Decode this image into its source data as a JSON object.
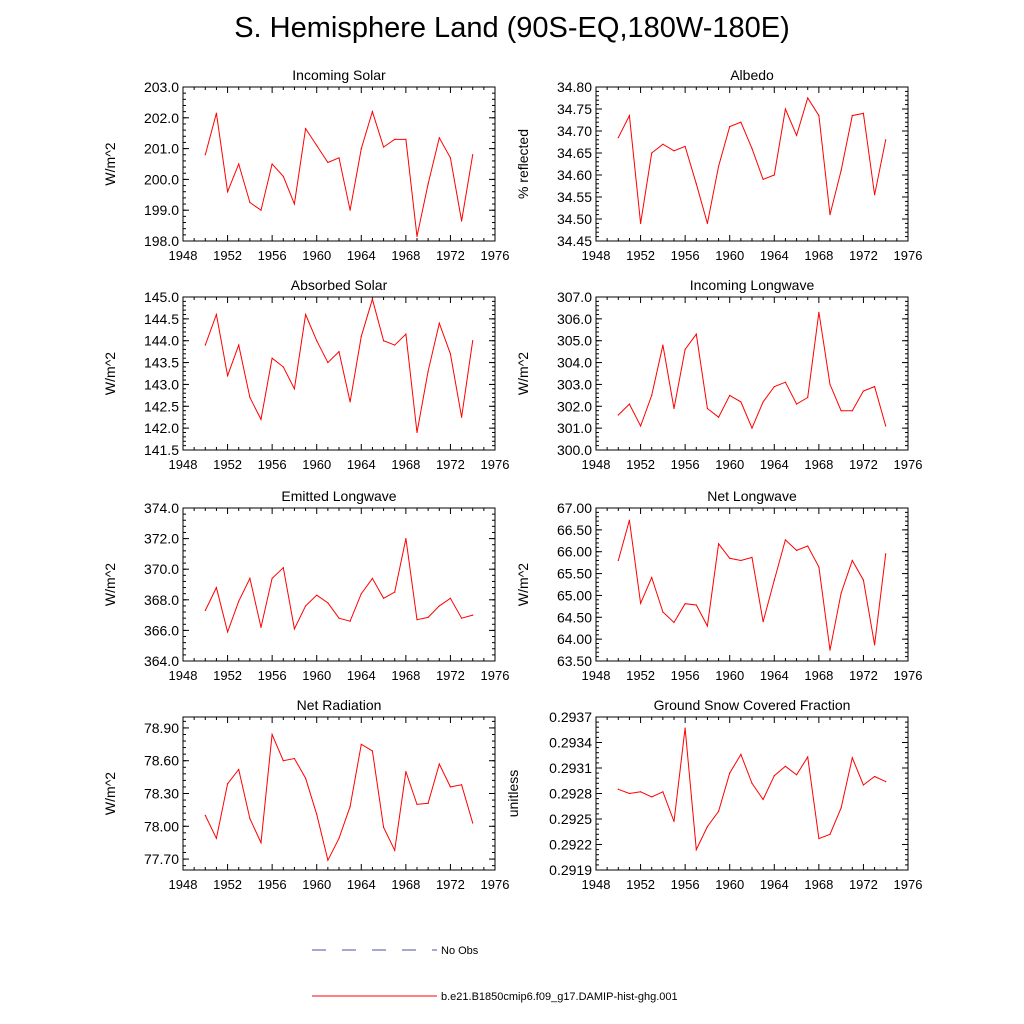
{
  "title": "S. Hemisphere Land (90S-EQ,180W-180E)",
  "colors": {
    "series": "#ff0000",
    "obs": "#4f4fa8",
    "axis": "#000000"
  },
  "legend": {
    "entries": [
      {
        "label": "No Obs",
        "style": "dashed",
        "color": "#4f4fa8"
      },
      {
        "label": "b.e21.B1850cmip6.f09_g17.DAMIP-hist-ghg.001",
        "style": "solid",
        "color": "#ff0000"
      }
    ]
  },
  "chart_data": [
    {
      "type": "line",
      "title": "Incoming Solar",
      "ylabel": "W/m^2",
      "xlim": [
        1948,
        1976
      ],
      "ylim": [
        198.0,
        203.0
      ],
      "xticks": [
        "1948",
        "1952",
        "1956",
        "1960",
        "1964",
        "1968",
        "1972",
        "1976"
      ],
      "yticks": [
        "198.0",
        "199.0",
        "200.0",
        "201.0",
        "202.0",
        "203.0"
      ],
      "x": [
        1950,
        1951,
        1952,
        1953,
        1954,
        1955,
        1956,
        1957,
        1958,
        1959,
        1960,
        1961,
        1962,
        1963,
        1964,
        1965,
        1966,
        1967,
        1968,
        1969,
        1970,
        1971,
        1972,
        1973,
        1974
      ],
      "series": [
        {
          "values": [
            200.8,
            202.15,
            199.6,
            200.5,
            199.25,
            199.0,
            200.5,
            200.1,
            199.2,
            201.65,
            201.1,
            200.55,
            200.7,
            199.0,
            201.0,
            202.2,
            201.05,
            201.3,
            201.3,
            198.15,
            199.85,
            201.35,
            200.7,
            198.65,
            200.8
          ]
        }
      ]
    },
    {
      "type": "line",
      "title": "Albedo",
      "ylabel": "% reflected",
      "xlim": [
        1948,
        1976
      ],
      "ylim": [
        34.45,
        34.8
      ],
      "xticks": [
        "1948",
        "1952",
        "1956",
        "1960",
        "1964",
        "1968",
        "1972",
        "1976"
      ],
      "yticks": [
        "34.45",
        "34.50",
        "34.55",
        "34.60",
        "34.65",
        "34.70",
        "34.75",
        "34.80"
      ],
      "x": [
        1950,
        1951,
        1952,
        1953,
        1954,
        1955,
        1956,
        1957,
        1958,
        1959,
        1960,
        1961,
        1962,
        1963,
        1964,
        1965,
        1966,
        1967,
        1968,
        1969,
        1970,
        1971,
        1972,
        1973,
        1974
      ],
      "series": [
        {
          "values": [
            34.685,
            34.735,
            34.49,
            34.65,
            34.67,
            34.655,
            34.665,
            34.58,
            34.49,
            34.62,
            34.71,
            34.72,
            34.66,
            34.59,
            34.6,
            34.75,
            34.69,
            34.775,
            34.735,
            34.51,
            34.61,
            34.735,
            34.74,
            34.555,
            34.68
          ]
        }
      ]
    },
    {
      "type": "line",
      "title": "Absorbed Solar",
      "ylabel": "W/m^2",
      "xlim": [
        1948,
        1976
      ],
      "ylim": [
        141.5,
        145.0
      ],
      "xticks": [
        "1948",
        "1952",
        "1956",
        "1960",
        "1964",
        "1968",
        "1972",
        "1976"
      ],
      "yticks": [
        "141.5",
        "142.0",
        "142.5",
        "143.0",
        "143.5",
        "144.0",
        "144.5",
        "145.0"
      ],
      "x": [
        1950,
        1951,
        1952,
        1953,
        1954,
        1955,
        1956,
        1957,
        1958,
        1959,
        1960,
        1961,
        1962,
        1963,
        1964,
        1965,
        1966,
        1967,
        1968,
        1969,
        1970,
        1971,
        1972,
        1973,
        1974
      ],
      "series": [
        {
          "values": [
            143.9,
            144.6,
            143.2,
            143.9,
            142.7,
            142.2,
            143.6,
            143.4,
            142.9,
            144.6,
            144.0,
            143.5,
            143.75,
            142.6,
            144.1,
            144.95,
            144.0,
            143.9,
            144.15,
            141.9,
            143.3,
            144.4,
            143.7,
            142.25,
            144.0
          ]
        }
      ]
    },
    {
      "type": "line",
      "title": "Incoming Longwave",
      "ylabel": "W/m^2",
      "xlim": [
        1948,
        1976
      ],
      "ylim": [
        300.0,
        307.0
      ],
      "xticks": [
        "1948",
        "1952",
        "1956",
        "1960",
        "1964",
        "1968",
        "1972",
        "1976"
      ],
      "yticks": [
        "300.0",
        "301.0",
        "302.0",
        "303.0",
        "304.0",
        "305.0",
        "306.0",
        "307.0"
      ],
      "x": [
        1950,
        1951,
        1952,
        1953,
        1954,
        1955,
        1956,
        1957,
        1958,
        1959,
        1960,
        1961,
        1962,
        1963,
        1964,
        1965,
        1966,
        1967,
        1968,
        1969,
        1970,
        1971,
        1972,
        1973,
        1974
      ],
      "series": [
        {
          "values": [
            301.6,
            302.1,
            301.1,
            302.5,
            304.8,
            301.9,
            304.6,
            305.3,
            301.9,
            301.5,
            302.5,
            302.2,
            301.0,
            302.2,
            302.9,
            303.1,
            302.1,
            302.4,
            306.3,
            303.0,
            301.8,
            301.8,
            302.7,
            302.9,
            301.1
          ]
        }
      ]
    },
    {
      "type": "line",
      "title": "Emitted Longwave",
      "ylabel": "W/m^2",
      "xlim": [
        1948,
        1976
      ],
      "ylim": [
        364.0,
        374.0
      ],
      "xticks": [
        "1948",
        "1952",
        "1956",
        "1960",
        "1964",
        "1968",
        "1972",
        "1976"
      ],
      "yticks": [
        "364.0",
        "366.0",
        "368.0",
        "370.0",
        "372.0",
        "374.0"
      ],
      "x": [
        1950,
        1951,
        1952,
        1953,
        1954,
        1955,
        1956,
        1957,
        1958,
        1959,
        1960,
        1961,
        1962,
        1963,
        1964,
        1965,
        1966,
        1967,
        1968,
        1969,
        1970,
        1971,
        1972,
        1973,
        1974
      ],
      "series": [
        {
          "values": [
            367.3,
            368.8,
            365.9,
            367.9,
            369.4,
            366.2,
            369.4,
            370.1,
            366.1,
            367.6,
            368.3,
            367.8,
            366.8,
            366.6,
            368.4,
            369.4,
            368.1,
            368.5,
            372.0,
            366.7,
            366.85,
            367.6,
            368.1,
            366.8,
            367.0
          ]
        }
      ]
    },
    {
      "type": "line",
      "title": "Net Longwave",
      "ylabel": "W/m^2",
      "xlim": [
        1948,
        1976
      ],
      "ylim": [
        63.5,
        67.0
      ],
      "xticks": [
        "1948",
        "1952",
        "1956",
        "1960",
        "1964",
        "1968",
        "1972",
        "1976"
      ],
      "yticks": [
        "63.50",
        "64.00",
        "64.50",
        "65.00",
        "65.50",
        "66.00",
        "66.50",
        "67.00"
      ],
      "x": [
        1950,
        1951,
        1952,
        1953,
        1954,
        1955,
        1956,
        1957,
        1958,
        1959,
        1960,
        1961,
        1962,
        1963,
        1964,
        1965,
        1966,
        1967,
        1968,
        1969,
        1970,
        1971,
        1972,
        1973,
        1974
      ],
      "series": [
        {
          "values": [
            65.8,
            66.72,
            64.82,
            65.41,
            64.62,
            64.38,
            64.81,
            64.78,
            64.3,
            66.18,
            65.85,
            65.8,
            65.87,
            64.4,
            65.35,
            66.27,
            66.03,
            66.13,
            65.65,
            63.75,
            65.05,
            65.8,
            65.35,
            63.87,
            65.95
          ]
        }
      ]
    },
    {
      "type": "line",
      "title": "Net Radiation",
      "ylabel": "W/m^2",
      "xlim": [
        1948,
        1976
      ],
      "ylim": [
        77.6,
        79.0
      ],
      "xticks": [
        "1948",
        "1952",
        "1956",
        "1960",
        "1964",
        "1968",
        "1972",
        "1976"
      ],
      "yticks": [
        "77.70",
        "78.00",
        "78.30",
        "78.60",
        "78.90"
      ],
      "ytick_values": [
        77.7,
        78.0,
        78.3,
        78.6,
        78.9
      ],
      "x": [
        1950,
        1951,
        1952,
        1953,
        1954,
        1955,
        1956,
        1957,
        1958,
        1959,
        1960,
        1961,
        1962,
        1963,
        1964,
        1965,
        1966,
        1967,
        1968,
        1969,
        1970,
        1971,
        1972,
        1973,
        1974
      ],
      "series": [
        {
          "values": [
            78.1,
            77.89,
            78.39,
            78.52,
            78.07,
            77.85,
            78.84,
            78.6,
            78.62,
            78.44,
            78.11,
            77.69,
            77.89,
            78.18,
            78.75,
            78.69,
            77.99,
            77.78,
            78.5,
            78.2,
            78.21,
            78.57,
            78.36,
            78.38,
            78.03
          ]
        }
      ]
    },
    {
      "type": "line",
      "title": "Ground Snow Covered Fraction",
      "ylabel": "unitless",
      "xlim": [
        1948,
        1976
      ],
      "ylim": [
        0.2919,
        0.2937
      ],
      "xticks": [
        "1948",
        "1952",
        "1956",
        "1960",
        "1964",
        "1968",
        "1972",
        "1976"
      ],
      "yticks": [
        "0.2919",
        "0.2922",
        "0.2925",
        "0.2928",
        "0.2931",
        "0.2934",
        "0.2937"
      ],
      "x": [
        1950,
        1951,
        1952,
        1953,
        1954,
        1955,
        1956,
        1957,
        1958,
        1959,
        1960,
        1961,
        1962,
        1963,
        1964,
        1965,
        1966,
        1967,
        1968,
        1969,
        1970,
        1971,
        1972,
        1973,
        1974
      ],
      "series": [
        {
          "values": [
            0.29285,
            0.2928,
            0.29282,
            0.29276,
            0.29282,
            0.29247,
            0.29357,
            0.29214,
            0.29241,
            0.29259,
            0.29304,
            0.29326,
            0.29292,
            0.29273,
            0.29301,
            0.29312,
            0.29302,
            0.29323,
            0.29227,
            0.29232,
            0.29263,
            0.29322,
            0.2929,
            0.293,
            0.29294
          ]
        }
      ]
    }
  ]
}
